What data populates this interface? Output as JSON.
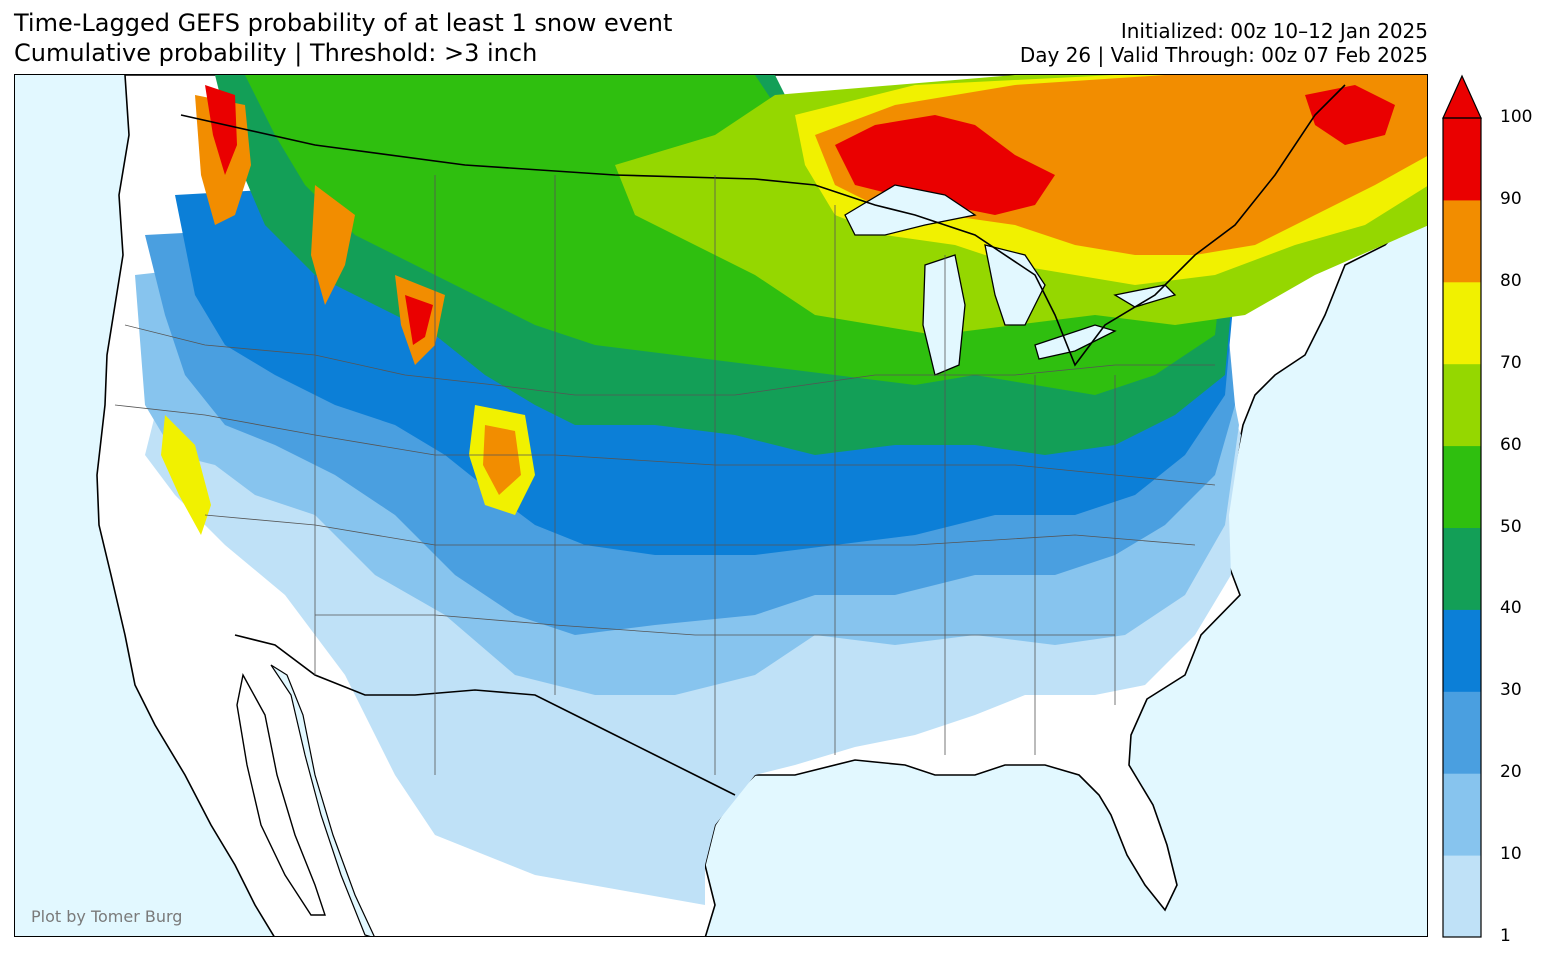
{
  "header": {
    "title_line1": "Time-Lagged GEFS probability of at least 1 snow event",
    "title_line2": "Cumulative probability | Threshold: >3 inch",
    "init_line": "Initialized: 00z 10–12 Jan 2025",
    "valid_line": "Day 26 | Valid Through: 00z 07 Feb 2025"
  },
  "credit": "Plot by Tomer Burg",
  "colors": {
    "ocean": "#e2f8ff",
    "land": "#ffffff",
    "bins": [
      "#bfe1f7",
      "#87c4ee",
      "#4a9fe0",
      "#0c7fd7",
      "#139f57",
      "#2fbf0f",
      "#95d700",
      "#f1f100",
      "#f28d00",
      "#ea0000"
    ]
  },
  "colorbar": {
    "tick_labels": [
      "1",
      "10",
      "20",
      "30",
      "40",
      "50",
      "60",
      "70",
      "80",
      "90",
      "100"
    ],
    "bins": [
      {
        "min": 1,
        "max": 10,
        "color": "#bfe1f7"
      },
      {
        "min": 10,
        "max": 20,
        "color": "#87c4ee"
      },
      {
        "min": 20,
        "max": 30,
        "color": "#4a9fe0"
      },
      {
        "min": 30,
        "max": 40,
        "color": "#0c7fd7"
      },
      {
        "min": 40,
        "max": 50,
        "color": "#139f57"
      },
      {
        "min": 50,
        "max": 60,
        "color": "#2fbf0f"
      },
      {
        "min": 60,
        "max": 70,
        "color": "#95d700"
      },
      {
        "min": 70,
        "max": 80,
        "color": "#f1f100"
      },
      {
        "min": 80,
        "max": 90,
        "color": "#f28d00"
      },
      {
        "min": 90,
        "max": 100,
        "color": "#ea0000"
      }
    ],
    "extend": "max"
  }
}
